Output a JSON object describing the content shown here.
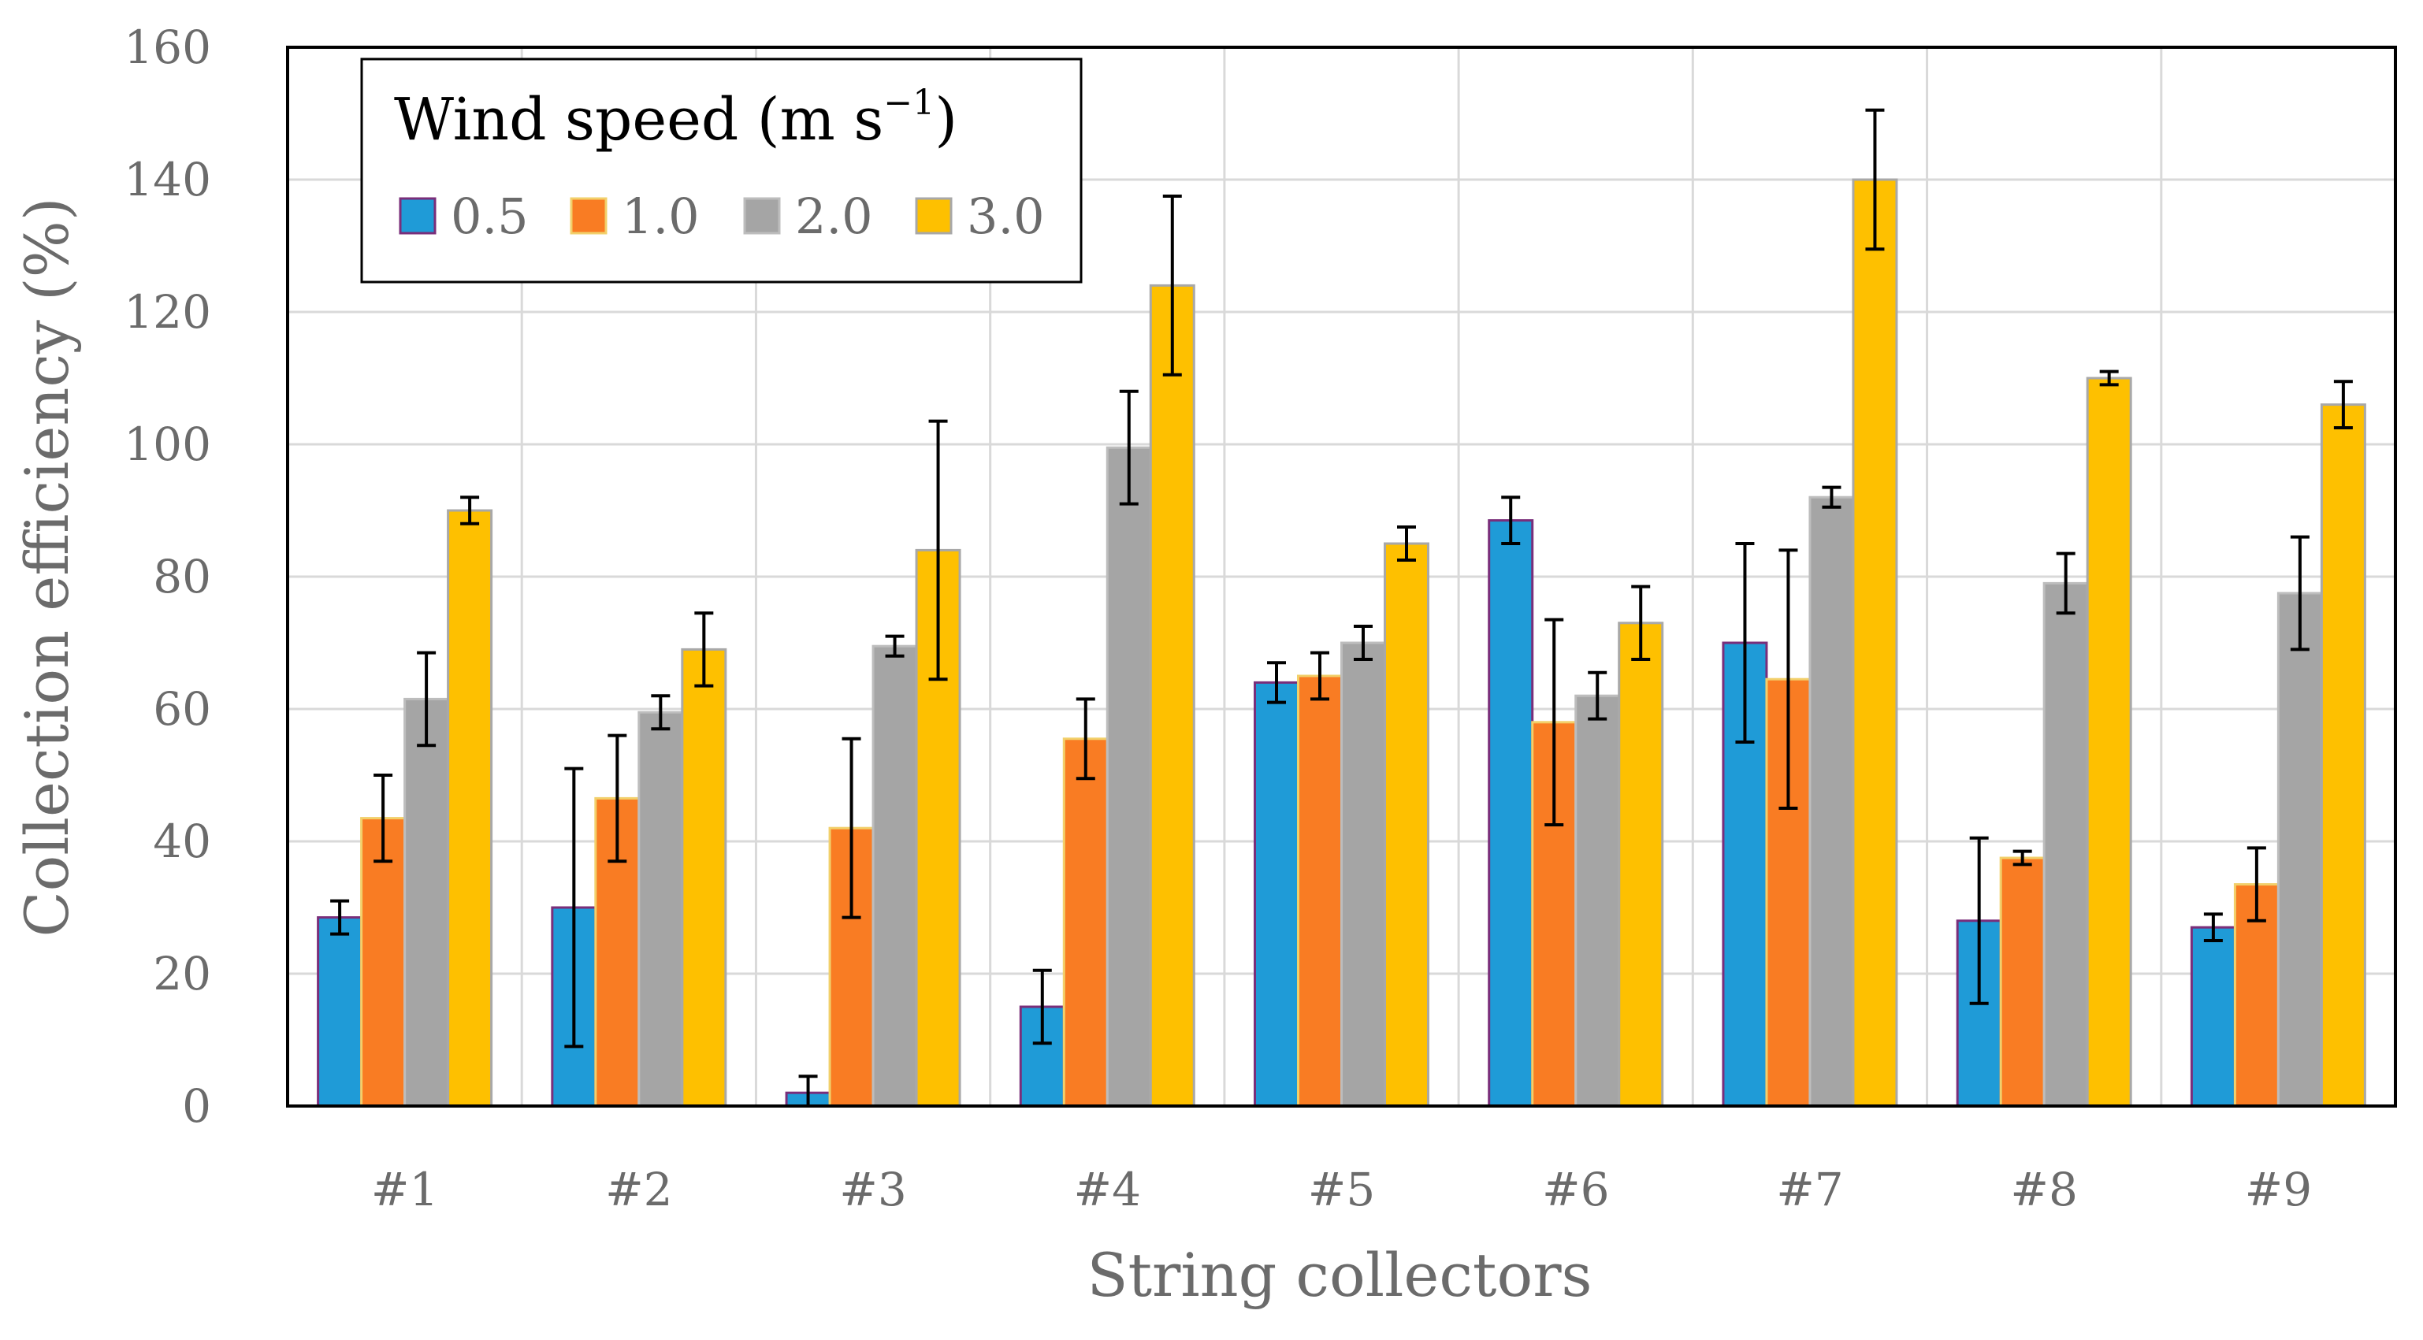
{
  "chart_data": {
    "type": "bar",
    "xlabel": "String collectors",
    "ylabel": "Collection efficiency (%)",
    "ylim": [
      0,
      160
    ],
    "yticks": [
      "0",
      "20",
      "40",
      "60",
      "80",
      "100",
      "120",
      "140",
      "160"
    ],
    "grid": true,
    "legend_placement": "top-left",
    "legend": {
      "title_main": "Wind speed (m s",
      "title_sup": "−1",
      "title_end": ")"
    },
    "categories": [
      "#1",
      "#2",
      "#3",
      "#4",
      "#5",
      "#6",
      "#7",
      "#8",
      "#9"
    ],
    "series": [
      {
        "name": "0.5",
        "color": "#1f9bd7",
        "border": "#7a2e7a",
        "values": [
          28.5,
          30,
          2,
          15,
          64,
          88.5,
          70,
          28,
          27
        ],
        "errors": [
          2.5,
          21,
          2.5,
          5.5,
          3,
          3.5,
          15,
          12.5,
          2
        ]
      },
      {
        "name": "1.0",
        "color": "#f97c23",
        "border": "#f2d06b",
        "values": [
          43.5,
          46.5,
          42,
          55.5,
          65,
          58,
          64.5,
          37.5,
          33.5
        ],
        "errors": [
          6.5,
          9.5,
          13.5,
          6,
          3.5,
          15.5,
          19.5,
          1,
          5.5
        ]
      },
      {
        "name": "2.0",
        "color": "#a5a5a5",
        "border": "#bdbdbd",
        "values": [
          61.5,
          59.5,
          69.5,
          99.5,
          70,
          62,
          92,
          79,
          77.5
        ],
        "errors": [
          7,
          2.5,
          1.5,
          8.5,
          2.5,
          3.5,
          1.5,
          4.5,
          8.5
        ]
      },
      {
        "name": "3.0",
        "color": "#fec000",
        "border": "#a8a8a8",
        "values": [
          90,
          69,
          84,
          124,
          85,
          73,
          140,
          110,
          106
        ],
        "errors": [
          2,
          5.5,
          19.5,
          13.5,
          2.5,
          5.5,
          10.5,
          1,
          3.5
        ]
      }
    ]
  }
}
